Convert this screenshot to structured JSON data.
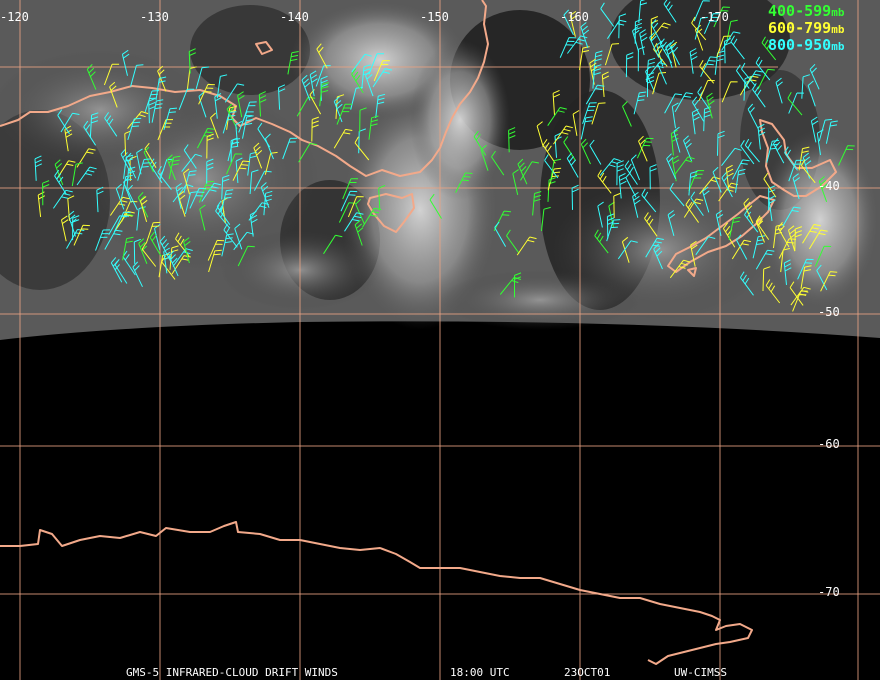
{
  "map": {
    "longitude_labels": [
      "-120",
      "-130",
      "-140",
      "-150",
      "-160",
      "-170"
    ],
    "latitude_labels": [
      "-40",
      "-50",
      "-60",
      "-70"
    ],
    "grid_color": "#e8a282",
    "coast_color": "#f2a98a"
  },
  "legend": {
    "items": [
      {
        "range": "400-599",
        "unit": "mb",
        "color": "#33ff33"
      },
      {
        "range": "600-799",
        "unit": "mb",
        "color": "#ffff33"
      },
      {
        "range": "800-950",
        "unit": "mb",
        "color": "#33ffff"
      }
    ]
  },
  "caption": {
    "product": "GMS-5 INFRARED-CLOUD DRIFT WINDS",
    "time": "18:00 UTC",
    "date": "23OCT01",
    "source": "UW-CIMSS"
  }
}
